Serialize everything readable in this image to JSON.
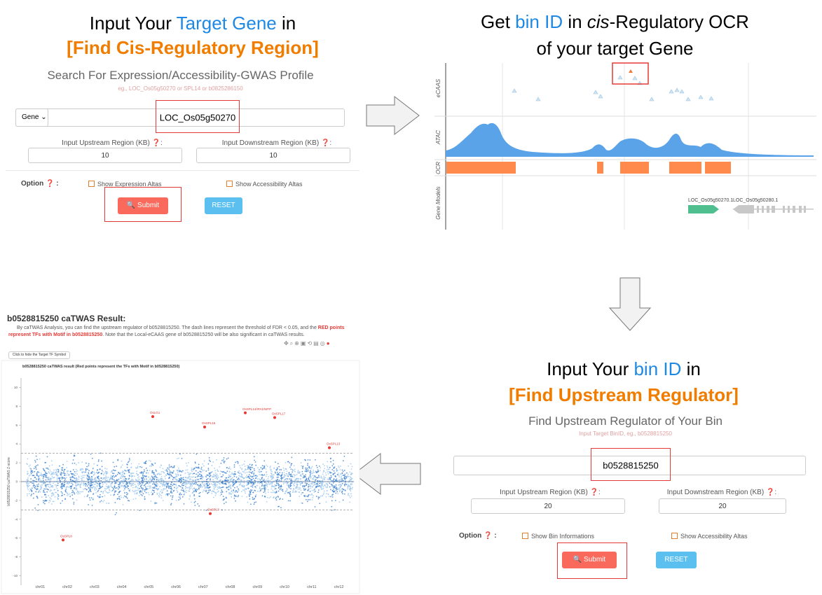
{
  "step1": {
    "heading": {
      "pre": "Input Your ",
      "highlight": "Target Gene",
      "post": " in"
    },
    "tool": "[Find Cis-Regulatory Region]",
    "form": {
      "search_title": "Search For Expression/Accessibility-GWAS Profile",
      "hint": "eg., LOC_Os05g50270 or SPL14 or b0825286150",
      "select": "Gene",
      "query": "LOC_Os05g50270",
      "upstream_label": "Input Upstream Region (KB)",
      "upstream_value": "10",
      "downstream_label": "Input Downstream Region (KB)",
      "downstream_value": "10",
      "option_label": "Option",
      "checkbox_1": "Show Expression Altas",
      "checkbox_2": "Show Accessibility Altas",
      "submit": "Submit",
      "reset": "RESET"
    }
  },
  "step2": {
    "heading": {
      "pre": "Get ",
      "highlight": "bin ID",
      "mid": " in ",
      "italic": "cis",
      "post": "-Regulatory OCR"
    },
    "heading_line2": "of your target Gene",
    "tracks": [
      "eCAAS",
      "ATAC",
      "OCR",
      "Gene Models"
    ],
    "genes": [
      "LOC_Os05g50270.1",
      "LOC_Os05g50280.1"
    ]
  },
  "step3": {
    "heading": {
      "pre": "Input Your ",
      "highlight": "bin ID",
      "post": " in"
    },
    "tool": "[Find Upstream Regulator]",
    "form": {
      "search_title": "Find Upstream Regulator of Your Bin",
      "hint": "Input Target BinID, eg., b0528815250",
      "query": "b0528815250",
      "upstream_label": "Input Upstream Region (KB)",
      "upstream_value": "20",
      "downstream_label": "Input Downstream Region (KB)",
      "downstream_value": "20",
      "option_label": "Option",
      "checkbox_1": "Show Bin Informations",
      "checkbox_2": "Show Accessibility Altas",
      "submit": "Submit",
      "reset": "RESET"
    }
  },
  "step4": {
    "title": "b0528815250 caTWAS Result:",
    "description": {
      "pre": "By caTWAS Analysis, you can find the upstream regulator of b0528815250. The dash lines represent the threshold of FDR < 0.05, and the ",
      "highlight": "RED points represent TFs with Motif in b0528815250",
      "post": ". Note that the Local-eCAAS gene of b0528815250 will be also significant in caTWAS results."
    },
    "button": "Click to hide the Target TF Symbol",
    "chart": {
      "type": "scatter",
      "title": "b0528815250 caTWAS result (Red points represent the TFs with Motif in b0528815250)",
      "y_label": "b0528815250 caTWAS Z-score",
      "categories": [
        "chr01",
        "chr02",
        "chr03",
        "chr04",
        "chr05",
        "chr06",
        "chr07",
        "chr08",
        "chr09",
        "chr10",
        "chr11",
        "chr12"
      ],
      "ylim": [
        -11,
        11
      ],
      "yticks": [
        -10,
        -8,
        -6,
        -4,
        -2,
        0,
        2,
        4,
        6,
        8,
        10
      ],
      "thresholds": [
        3,
        -3
      ],
      "highlights": [
        {
          "label": "OsLG1",
          "value": 6.9
        },
        {
          "label": "OsSPL14/IPA1/WFP",
          "value": 7.3
        },
        {
          "label": "OsSPL17",
          "value": 6.8
        },
        {
          "label": "OsSPL16",
          "value": 5.8
        },
        {
          "label": "OsSPL13",
          "value": 3.6
        },
        {
          "label": "OsSPL8",
          "value": -6.2
        },
        {
          "label": "OsSPL7",
          "value": -3.4
        }
      ]
    }
  }
}
